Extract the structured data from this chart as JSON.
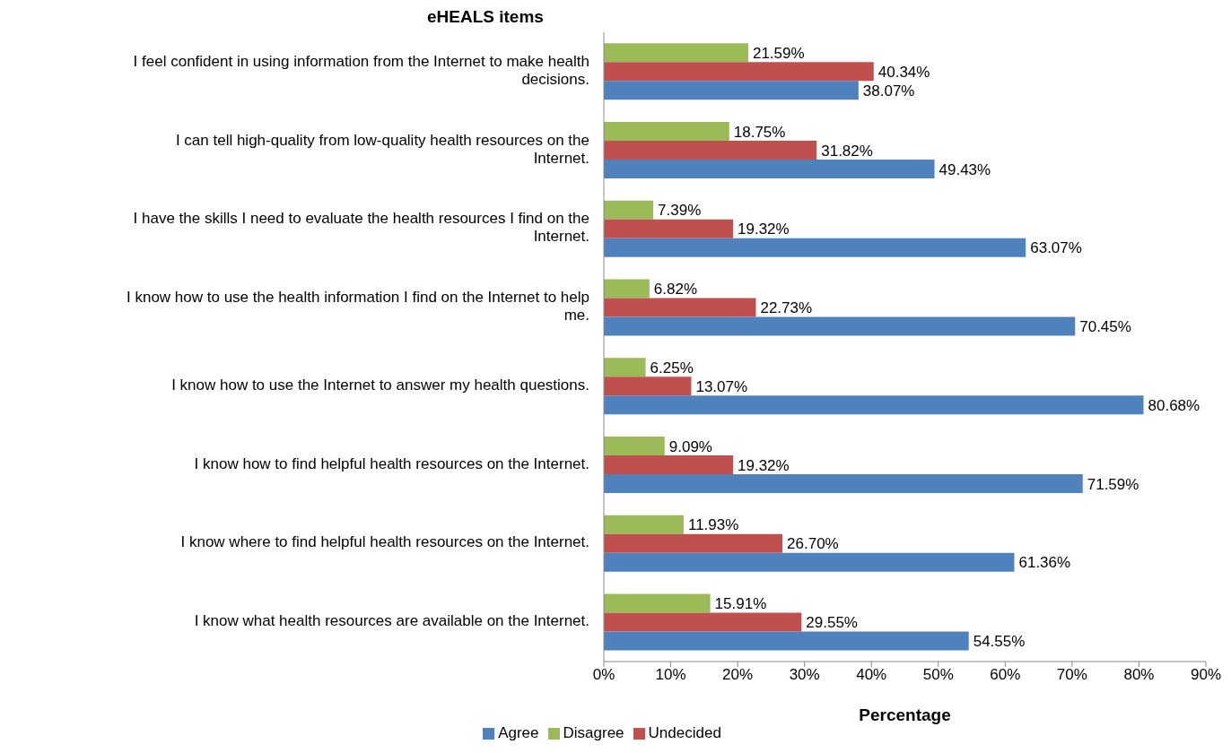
{
  "chart_data": {
    "type": "bar",
    "orientation": "horizontal",
    "ylabel": "eHEALS items",
    "xlabel": "Percentage",
    "categories": [
      "I feel confident in using information from the Internet to make health decisions.",
      "I can tell high-quality from low-quality health resources on the Internet.",
      "I have the skills I need to evaluate the health resources I find on the Internet.",
      "I know how to use the health information I find on the Internet to help me.",
      "I know how to use the Internet to answer my health questions.",
      "I know how to find helpful health resources on the Internet.",
      "I know where to find helpful health resources on the Internet.",
      "I know what health resources are available on the Internet."
    ],
    "series": [
      {
        "name": "Disagree",
        "color": "#9bbb59",
        "values": [
          21.59,
          18.75,
          7.39,
          6.82,
          6.25,
          9.09,
          11.93,
          15.91
        ],
        "value_labels": [
          "21.59%",
          "18.75%",
          "7.39%",
          "6.82%",
          "6.25%",
          "9.09%",
          "11.93%",
          "15.91%"
        ]
      },
      {
        "name": "Undecided",
        "color": "#c0504d",
        "values": [
          40.34,
          31.82,
          19.32,
          22.73,
          13.07,
          19.32,
          26.7,
          29.55
        ],
        "value_labels": [
          "40.34%",
          "31.82%",
          "19.32%",
          "22.73%",
          "13.07%",
          "19.32%",
          "26.70%",
          "29.55%"
        ]
      },
      {
        "name": "Agree",
        "color": "#4f81bd",
        "values": [
          38.07,
          49.43,
          63.07,
          70.45,
          80.68,
          71.59,
          61.36,
          54.55
        ],
        "value_labels": [
          "38.07%",
          "49.43%",
          "63.07%",
          "70.45%",
          "80.68%",
          "71.59%",
          "61.36%",
          "54.55%"
        ]
      }
    ],
    "xlim": [
      0,
      90
    ],
    "xticks": [
      {
        "value": 0,
        "label": "0%"
      },
      {
        "value": 10,
        "label": "10%"
      },
      {
        "value": 20,
        "label": "20%"
      },
      {
        "value": 30,
        "label": "30%"
      },
      {
        "value": 40,
        "label": "40%"
      },
      {
        "value": 50,
        "label": "50%"
      },
      {
        "value": 60,
        "label": "60%"
      },
      {
        "value": 70,
        "label": "70%"
      },
      {
        "value": 80,
        "label": "80%"
      },
      {
        "value": 90,
        "label": "90%"
      }
    ],
    "legend": "bottom"
  }
}
